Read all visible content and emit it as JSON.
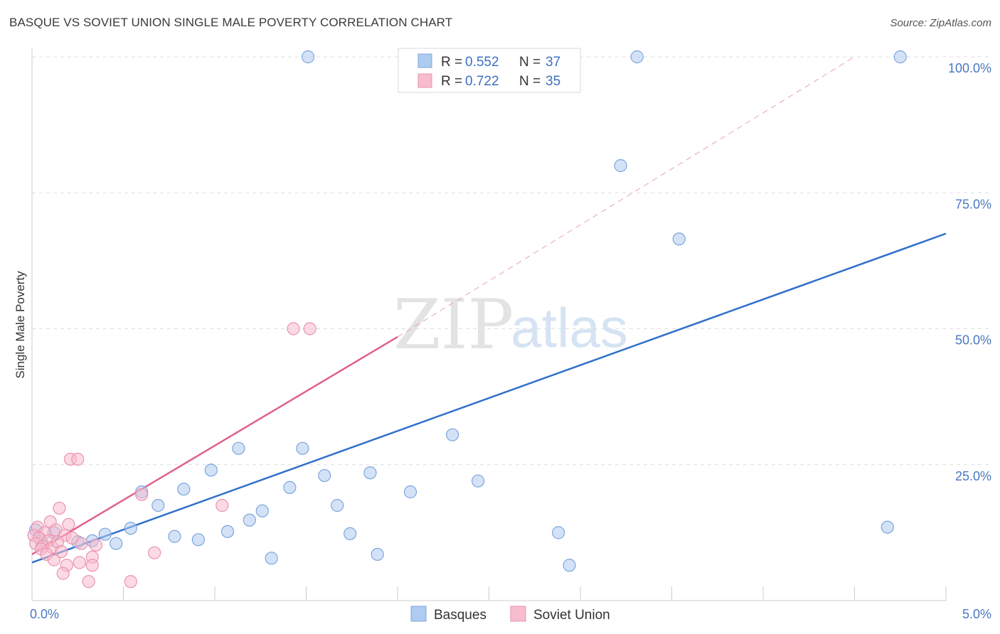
{
  "title": "BASQUE VS SOVIET UNION SINGLE MALE POVERTY CORRELATION CHART",
  "source": "Source: ZipAtlas.com",
  "watermark": {
    "zip": "ZIP",
    "atlas": "atlas"
  },
  "legend": {
    "r_label": "R = ",
    "n_label": "N = ",
    "entries": [
      {
        "r": "0.552",
        "n": "37"
      },
      {
        "r": "0.722",
        "n": "35"
      }
    ]
  },
  "colors": {
    "basques_fill": "#aecbf0",
    "basques_stroke": "#7da6dc",
    "basques_line": "#2f6fcb",
    "soviet_fill": "#f7bccd",
    "soviet_stroke": "#ea93ae",
    "soviet_line": "#e0608b"
  },
  "chart_data": {
    "type": "scatter",
    "title": "BASQUE VS SOVIET UNION SINGLE MALE POVERTY CORRELATION CHART",
    "xlabel": "",
    "ylabel": "Single Male Poverty",
    "xlim": [
      0,
      5
    ],
    "ylim": [
      0,
      100
    ],
    "x_tick_labels": [
      "0.0%",
      "5.0%"
    ],
    "y_tick_labels": [
      "25.0%",
      "50.0%",
      "75.0%",
      "100.0%"
    ],
    "y_tick_values": [
      25,
      50,
      75,
      100
    ],
    "grid": true,
    "legend_position": "top-center",
    "series": [
      {
        "name": "Basques",
        "points": [
          [
            1.51,
            100.0
          ],
          [
            3.31,
            100.0
          ],
          [
            4.75,
            100.0
          ],
          [
            3.22,
            80.0
          ],
          [
            3.54,
            66.5
          ],
          [
            2.3,
            30.5
          ],
          [
            1.13,
            28.0
          ],
          [
            1.48,
            28.0
          ],
          [
            0.98,
            24.0
          ],
          [
            1.85,
            23.5
          ],
          [
            1.6,
            23.0
          ],
          [
            2.44,
            22.0
          ],
          [
            0.83,
            20.5
          ],
          [
            1.41,
            20.8
          ],
          [
            2.07,
            20.0
          ],
          [
            0.6,
            20.0
          ],
          [
            0.69,
            17.5
          ],
          [
            1.67,
            17.5
          ],
          [
            1.26,
            16.5
          ],
          [
            1.19,
            14.8
          ],
          [
            0.54,
            13.3
          ],
          [
            1.07,
            12.7
          ],
          [
            1.74,
            12.3
          ],
          [
            2.88,
            12.5
          ],
          [
            4.68,
            13.5
          ],
          [
            0.4,
            12.2
          ],
          [
            0.78,
            11.8
          ],
          [
            0.91,
            11.2
          ],
          [
            0.33,
            11.0
          ],
          [
            0.25,
            10.8
          ],
          [
            0.46,
            10.5
          ],
          [
            0.12,
            12.5
          ],
          [
            0.05,
            11.0
          ],
          [
            0.02,
            13.0
          ],
          [
            1.31,
            7.8
          ],
          [
            1.89,
            8.5
          ],
          [
            2.94,
            6.5
          ]
        ]
      },
      {
        "name": "Soviet Union",
        "points": [
          [
            1.43,
            50.0
          ],
          [
            1.52,
            50.0
          ],
          [
            0.21,
            26.0
          ],
          [
            0.25,
            26.0
          ],
          [
            0.6,
            19.5
          ],
          [
            1.04,
            17.5
          ],
          [
            0.15,
            17.0
          ],
          [
            0.1,
            14.5
          ],
          [
            0.2,
            14.0
          ],
          [
            0.13,
            13.0
          ],
          [
            0.03,
            13.5
          ],
          [
            0.07,
            12.5
          ],
          [
            0.18,
            12.0
          ],
          [
            0.01,
            12.0
          ],
          [
            0.04,
            11.5
          ],
          [
            0.09,
            11.0
          ],
          [
            0.02,
            10.5
          ],
          [
            0.06,
            10.0
          ],
          [
            0.11,
            9.8
          ],
          [
            0.35,
            10.2
          ],
          [
            0.27,
            10.5
          ],
          [
            0.22,
            11.5
          ],
          [
            0.14,
            10.8
          ],
          [
            0.05,
            9.5
          ],
          [
            0.16,
            9.0
          ],
          [
            0.08,
            8.5
          ],
          [
            0.33,
            8.0
          ],
          [
            0.67,
            8.8
          ],
          [
            0.26,
            7.0
          ],
          [
            0.19,
            6.5
          ],
          [
            0.33,
            6.5
          ],
          [
            0.17,
            5.0
          ],
          [
            0.31,
            3.5
          ],
          [
            0.54,
            3.5
          ],
          [
            0.12,
            7.5
          ]
        ]
      }
    ],
    "trend_lines": [
      {
        "series": "Basques",
        "from": [
          0.0,
          7.0
        ],
        "to": [
          5.0,
          67.5
        ]
      },
      {
        "series": "Soviet Union",
        "from": [
          0.0,
          8.5
        ],
        "to": [
          2.0,
          48.5
        ],
        "dashed_extension_to": [
          4.5,
          100.0
        ]
      }
    ]
  }
}
